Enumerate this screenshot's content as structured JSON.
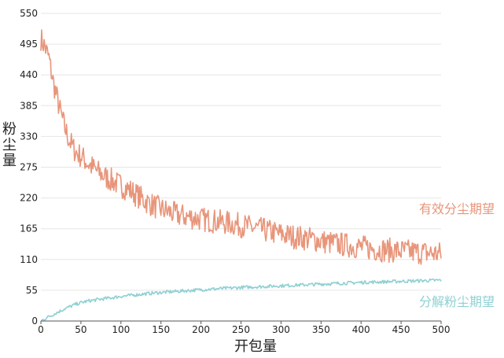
{
  "chart_data": {
    "type": "line",
    "title": "",
    "xlabel": "开包量",
    "ylabel": "粉尘量",
    "xlim": [
      0,
      500
    ],
    "ylim": [
      0,
      550
    ],
    "x_ticks": [
      0,
      50,
      100,
      150,
      200,
      250,
      300,
      350,
      400,
      450,
      500
    ],
    "y_ticks": [
      0,
      55,
      110,
      165,
      220,
      275,
      330,
      385,
      440,
      495,
      550
    ],
    "grid": "horizontal",
    "legend": "inline-right",
    "series": [
      {
        "name": "有效分尘期望",
        "color": "#e8957a",
        "x": [
          0,
          5,
          10,
          15,
          20,
          25,
          30,
          35,
          40,
          45,
          50,
          60,
          70,
          80,
          90,
          100,
          110,
          120,
          130,
          140,
          150,
          160,
          170,
          180,
          190,
          200,
          220,
          240,
          260,
          280,
          300,
          320,
          340,
          360,
          380,
          400,
          420,
          440,
          460,
          480,
          490,
          500
        ],
        "values": [
          505,
          490,
          470,
          430,
          400,
          370,
          345,
          325,
          310,
          300,
          295,
          280,
          268,
          258,
          250,
          242,
          235,
          225,
          215,
          207,
          200,
          195,
          190,
          187,
          185,
          182,
          178,
          174,
          168,
          162,
          155,
          150,
          146,
          140,
          136,
          132,
          128,
          126,
          124,
          122,
          121,
          120
        ],
        "noise": 22
      },
      {
        "name": "分解粉尘期望",
        "color": "#8fd0d3",
        "x": [
          0,
          10,
          20,
          30,
          40,
          50,
          60,
          70,
          80,
          90,
          100,
          120,
          140,
          160,
          180,
          200,
          250,
          300,
          350,
          400,
          450,
          500
        ],
        "values": [
          0,
          8,
          15,
          22,
          28,
          33,
          36,
          38,
          40,
          42,
          44,
          47,
          50,
          52,
          54,
          56,
          60,
          63,
          66,
          69,
          71,
          73
        ],
        "noise": 3
      }
    ]
  }
}
